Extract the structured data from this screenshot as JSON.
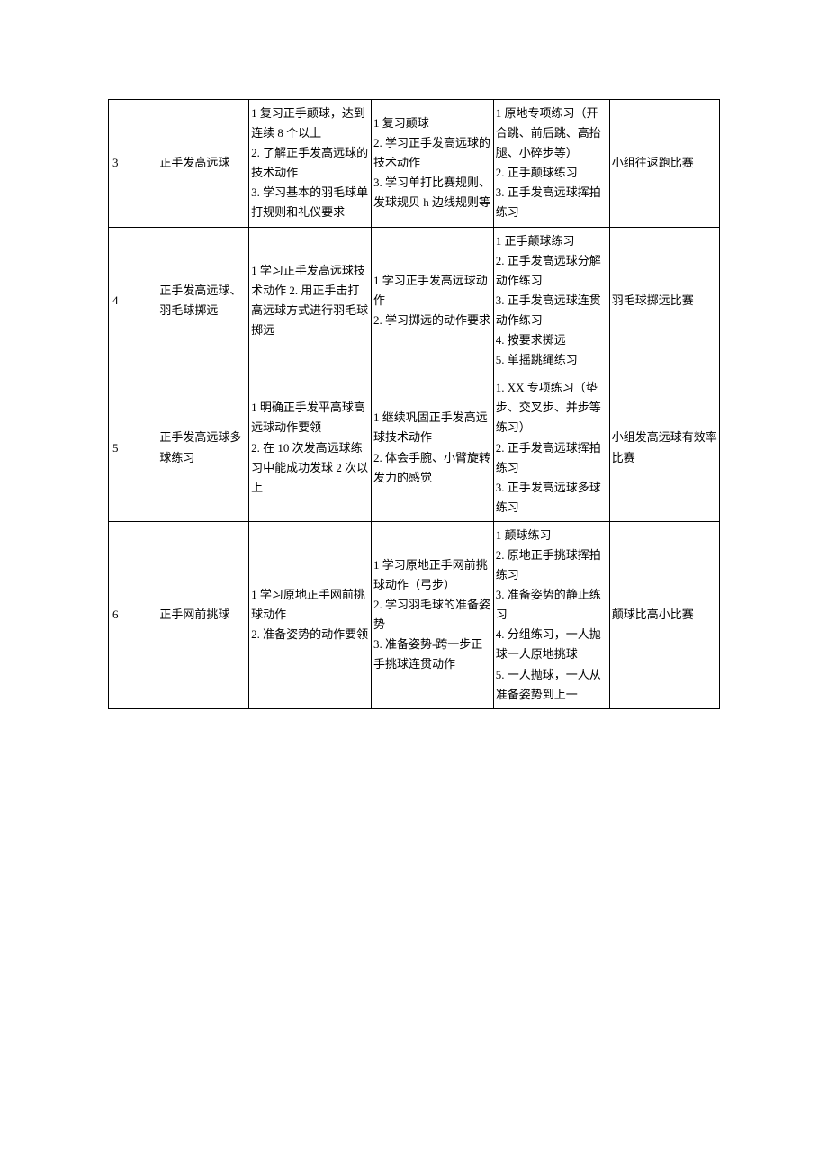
{
  "table": {
    "rows": [
      {
        "num": "3",
        "topic": "正手发高远球",
        "objective": "1 复习正手颠球，达到连续 8 个以上\n2. 了解正手发高远球的技术动作\n3. 学习基本的羽毛球单打规则和礼仪要求",
        "content": "1 复习颠球\n2. 学习正手发高远球的技术动作\n3. 学习单打比赛规则、发球规贝 h 边线规则等",
        "practice": "1 原地专项练习（开合跳、前后跳、高抬腿、小碎步等）\n2. 正手颠球练习\n3. 正手发高远球挥拍练习",
        "game": "小组往返跑比赛"
      },
      {
        "num": "4",
        "topic": "正手发高远球、羽毛球掷远",
        "objective": "1 学习正手发高远球技术动作 2. 用正手击打高远球方式进行羽毛球掷远",
        "content": "1 学习正手发高远球动作\n2. 学习掷远的动作要求",
        "practice": "1 正手颠球练习\n2. 正手发高远球分解动作练习\n3. 正手发高远球连贯动作练习\n4. 按要求掷远\n5. 单摇跳绳练习",
        "game": "羽毛球掷远比赛"
      },
      {
        "num": "5",
        "topic": "正手发高远球多球练习",
        "objective": "1 明确正手发平高球高远球动作要领\n2. 在 10 次发高远球练习中能成功发球 2 次以上",
        "content": "1 继续巩固正手发高远球技术动作\n2. 体会手腕、小臂旋转发力的感觉",
        "practice": "1. XX 专项练习（垫步、交叉步、并步等练习）\n2. 正手发高远球挥拍练习\n3. 正手发高远球多球练习",
        "game": "小组发高远球有效率比赛"
      },
      {
        "num": "6",
        "topic": "正手网前挑球",
        "objective": "1 学习原地正手网前挑球动作\n2. 准备姿势的动作要领",
        "content": "1 学习原地正手网前挑球动作（弓步）\n2. 学习羽毛球的准备姿势\n3. 准备姿势-跨一步正手挑球连贯动作",
        "practice": "1 颠球练习\n2. 原地正手挑球挥拍练习\n3. 准备姿势的静止练习\n4. 分组练习，一人抛球一人原地挑球\n5. 一人抛球，一人从准备姿势到上一",
        "game": "颠球比高小比赛"
      }
    ]
  }
}
